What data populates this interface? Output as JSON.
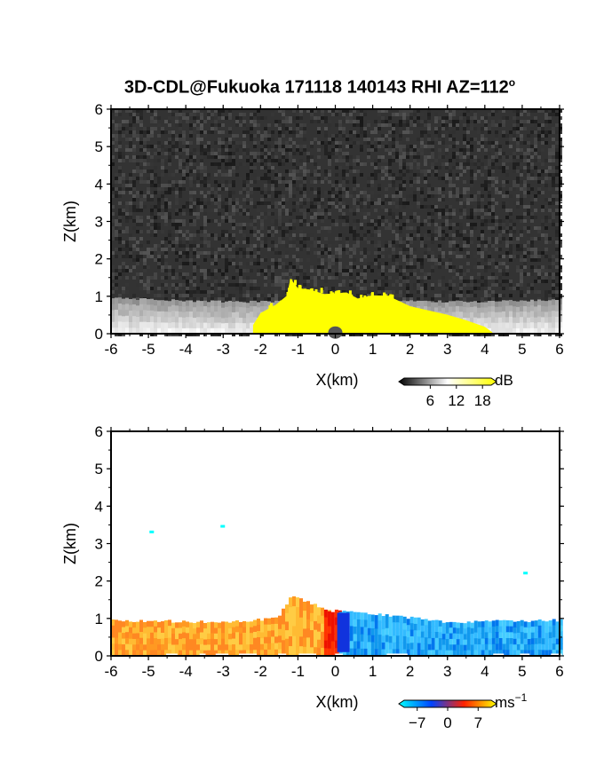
{
  "title": {
    "text": "3D-CDL@Fukuoka 171118 140143 RHI AZ=112",
    "superscript": "o"
  },
  "chart_data": [
    {
      "type": "heatmap",
      "panel": "backscatter",
      "xlabel": "X(km)",
      "ylabel": "Z(km)",
      "xlim": [
        -6,
        6
      ],
      "ylim": [
        0,
        6
      ],
      "xticks": [
        "-6",
        "-5",
        "-4",
        "-3",
        "-2",
        "-1",
        "0",
        "1",
        "2",
        "3",
        "4",
        "5",
        "6"
      ],
      "yticks": [
        "0",
        "1",
        "2",
        "3",
        "4",
        "5",
        "6"
      ],
      "colorbar": {
        "unit": "dB",
        "tick_labels": [
          "6",
          "12",
          "18"
        ],
        "tick_values": [
          6,
          12,
          18
        ],
        "range": [
          0,
          20
        ],
        "colors": [
          "#000000",
          "#ffffff",
          "#ffff00"
        ]
      },
      "background": "noise",
      "noise_color": "#333333",
      "echo_layer": {
        "color": "#e8e8e8",
        "top_km": [
          [
            -6,
            0.95
          ],
          [
            -5,
            0.92
          ],
          [
            -4,
            0.88
          ],
          [
            -3,
            0.86
          ],
          [
            -2,
            0.85
          ],
          [
            -1,
            0.88
          ],
          [
            0,
            0.9
          ],
          [
            1,
            0.9
          ],
          [
            2,
            0.88
          ],
          [
            3,
            0.86
          ],
          [
            4,
            0.86
          ],
          [
            5,
            0.88
          ],
          [
            6,
            0.92
          ]
        ]
      },
      "saturated_region": {
        "color": "#ffff00",
        "top_km": [
          [
            -2.2,
            0.2
          ],
          [
            -2.0,
            0.55
          ],
          [
            -1.6,
            0.8
          ],
          [
            -1.3,
            1.0
          ],
          [
            -1.2,
            1.45
          ],
          [
            -1.0,
            1.2
          ],
          [
            -0.7,
            1.15
          ],
          [
            -0.3,
            1.1
          ],
          [
            0,
            1.05
          ],
          [
            0.3,
            1.1
          ],
          [
            0.6,
            0.9
          ],
          [
            1.0,
            1.05
          ],
          [
            1.4,
            1.0
          ],
          [
            2.0,
            0.75
          ],
          [
            2.5,
            0.6
          ],
          [
            3.0,
            0.5
          ],
          [
            3.5,
            0.35
          ],
          [
            4.0,
            0.2
          ],
          [
            4.2,
            0.05
          ]
        ]
      }
    },
    {
      "type": "heatmap",
      "panel": "radial_velocity",
      "xlabel": "X(km)",
      "ylabel": "Z(km)",
      "xlim": [
        -6,
        6
      ],
      "ylim": [
        0,
        6
      ],
      "xticks": [
        "-6",
        "-5",
        "-4",
        "-3",
        "-2",
        "-1",
        "0",
        "1",
        "2",
        "3",
        "4",
        "5",
        "6"
      ],
      "yticks": [
        "0",
        "1",
        "2",
        "3",
        "4",
        "5",
        "6"
      ],
      "colorbar": {
        "unit": "ms",
        "unit_exponent": "−1",
        "tick_labels": [
          "−7",
          "0",
          "7"
        ],
        "tick_values": [
          -7,
          0,
          7
        ],
        "range": [
          -10,
          10
        ],
        "colors": [
          "#00ffff",
          "#0044ff",
          "#ff2200",
          "#ffff00"
        ]
      },
      "velocity_field": [
        {
          "x_range": [
            -6,
            -0.2
          ],
          "top_km": [
            [
              -6,
              0.95
            ],
            [
              -3,
              0.9
            ],
            [
              -1.6,
              1.0
            ],
            [
              -1.2,
              1.6
            ],
            [
              -0.2,
              1.2
            ]
          ],
          "value_ms": 6,
          "color": "#ffaa22"
        },
        {
          "x_range": [
            -0.3,
            0.1
          ],
          "top_km": [
            [
              -0.3,
              1.2
            ],
            [
              0.1,
              1.2
            ]
          ],
          "value_ms": 0,
          "color": "#ff3300"
        },
        {
          "x_range": [
            0.1,
            6
          ],
          "top_km": [
            [
              0.1,
              1.2
            ],
            [
              1.2,
              1.1
            ],
            [
              3,
              0.9
            ],
            [
              6,
              0.95
            ]
          ],
          "value_ms": -7,
          "color": "#22aaee"
        }
      ],
      "isolated_pixels": [
        {
          "x": -4.9,
          "z": 3.3,
          "color": "#00ffff"
        },
        {
          "x": -3.0,
          "z": 3.45,
          "color": "#00ffff"
        },
        {
          "x": 5.1,
          "z": 2.2,
          "color": "#00ffff"
        }
      ]
    }
  ]
}
